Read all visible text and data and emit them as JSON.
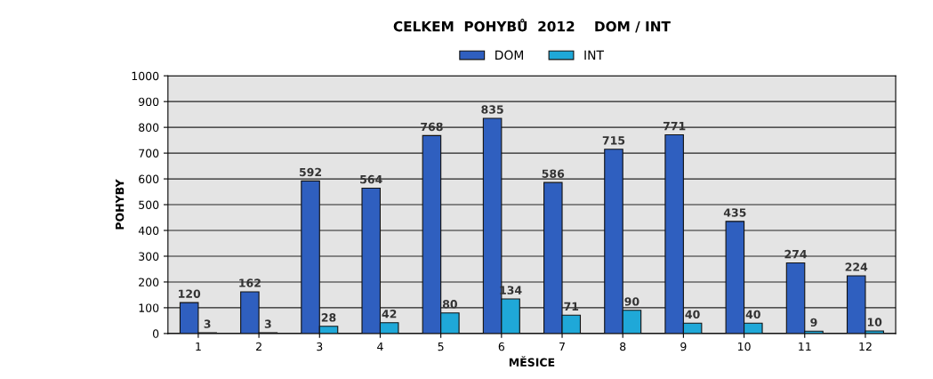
{
  "chart_data": {
    "type": "bar",
    "title": "CELKEM  POHYBŮ  2012    DOM / INT",
    "xlabel": "MĚSICE",
    "ylabel": "POHYBY",
    "categories": [
      "1",
      "2",
      "3",
      "4",
      "5",
      "6",
      "7",
      "8",
      "9",
      "10",
      "11",
      "12"
    ],
    "series": [
      {
        "name": "DOM",
        "color": "#2f5fbf",
        "values": [
          120,
          162,
          592,
          564,
          768,
          835,
          586,
          715,
          771,
          435,
          274,
          224
        ]
      },
      {
        "name": "INT",
        "color": "#1fa8d8",
        "values": [
          3,
          3,
          28,
          42,
          80,
          134,
          71,
          90,
          40,
          40,
          9,
          10
        ]
      }
    ],
    "ylim": [
      0,
      1000
    ],
    "yticks": [
      0,
      100,
      200,
      300,
      400,
      500,
      600,
      700,
      800,
      900,
      1000
    ],
    "grid": "y",
    "legend": "top",
    "data_labels": true
  }
}
